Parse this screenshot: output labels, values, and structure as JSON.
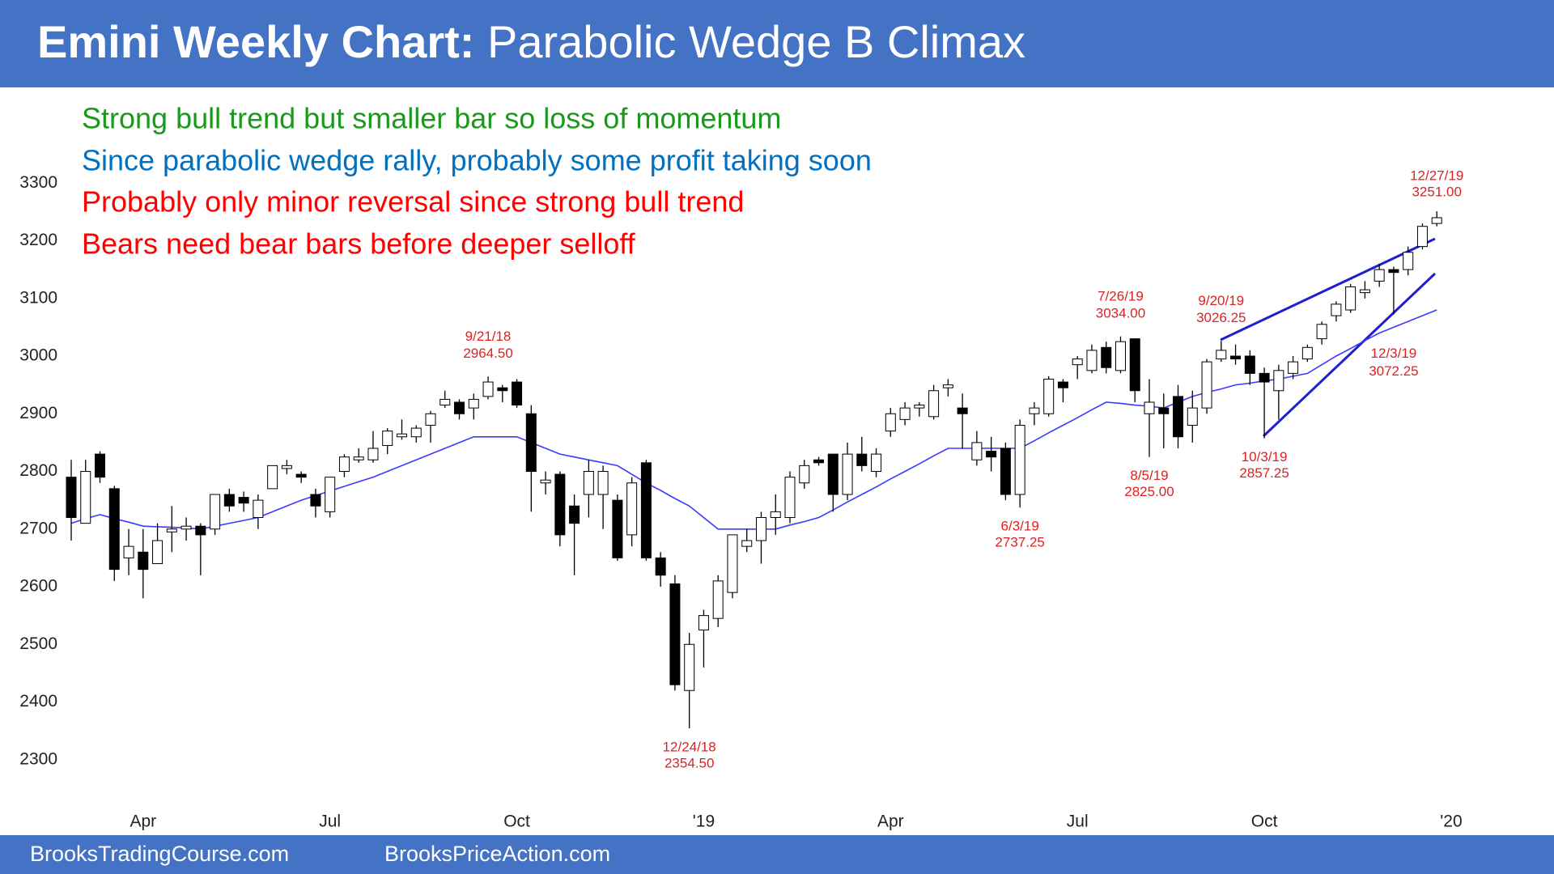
{
  "chart_data": {
    "type": "candlestick",
    "title": "Emini Weekly Chart:",
    "subtitle": "Parabolic Wedge B Climax",
    "notes": [
      {
        "text": "Strong bull trend but smaller bar so loss of momentum",
        "color": "#1a9a1a"
      },
      {
        "text": "Since parabolic wedge rally, probably some profit taking soon",
        "color": "#0070c0"
      },
      {
        "text": "Probably only minor reversal since strong bull trend",
        "color": "#ff0000"
      },
      {
        "text": "Bears need bear bars before deeper selloff",
        "color": "#ff0000"
      }
    ],
    "categories": [
      null,
      null,
      null,
      null,
      null,
      "Apr",
      null,
      null,
      null,
      null,
      null,
      null,
      null,
      null,
      null,
      null,
      null,
      null,
      "Jul",
      null,
      null,
      null,
      null,
      null,
      null,
      null,
      null,
      null,
      null,
      null,
      null,
      "Oct",
      null,
      null,
      null,
      null,
      null,
      null,
      null,
      null,
      null,
      null,
      null,
      null,
      "'19",
      null,
      null,
      null,
      null,
      null,
      null,
      null,
      null,
      null,
      null,
      null,
      null,
      "Apr",
      null,
      null,
      null,
      null,
      null,
      null,
      null,
      null,
      null,
      null,
      null,
      null,
      "Jul",
      null,
      null,
      null,
      null,
      null,
      null,
      null,
      null,
      null,
      null,
      null,
      null,
      "Oct",
      null,
      null,
      null,
      null,
      null,
      null,
      null,
      null,
      null,
      null,
      null,
      null,
      "'20"
    ],
    "open": [
      2790,
      2710,
      2830,
      2770,
      2650,
      2660,
      2640,
      2695,
      2700,
      2705,
      2700,
      2760,
      2755,
      2720,
      2770,
      2805,
      2795,
      2760,
      2730,
      2800,
      2820,
      2820,
      2845,
      2860,
      2860,
      2880,
      2915,
      2920,
      2910,
      2930,
      2945,
      2955,
      2900,
      2780,
      2795,
      2740,
      2760,
      2760,
      2750,
      2690,
      2815,
      2650,
      2605,
      2420,
      2525,
      2545,
      2590,
      2670,
      2680,
      2720,
      2720,
      2780,
      2820,
      2830,
      2760,
      2830,
      2800,
      2870,
      2890,
      2910,
      2895,
      2945,
      2910,
      2820,
      2835,
      2840,
      2760,
      2900,
      2900,
      2955,
      2985,
      2975,
      3015,
      2975,
      3030,
      2900,
      2910,
      2930,
      2880,
      2910,
      2995,
      3000,
      3000,
      2970,
      2940,
      2970,
      2995,
      3030,
      3070,
      3080,
      3110,
      3130,
      3150,
      3150,
      3190,
      3230,
      null
    ],
    "high": [
      2820,
      2820,
      2835,
      2775,
      2700,
      2700,
      2710,
      2740,
      2720,
      2710,
      2760,
      2770,
      2765,
      2760,
      2810,
      2820,
      2800,
      2770,
      2790,
      2830,
      2840,
      2870,
      2875,
      2890,
      2880,
      2905,
      2940,
      2925,
      2935,
      2964.5,
      2950,
      2960,
      2915,
      2800,
      2800,
      2760,
      2820,
      2810,
      2760,
      2790,
      2820,
      2660,
      2620,
      2520,
      2560,
      2620,
      2690,
      2700,
      2730,
      2760,
      2800,
      2820,
      2825,
      2830,
      2850,
      2860,
      2840,
      2910,
      2920,
      2920,
      2950,
      2960,
      2935,
      2870,
      2860,
      2850,
      2890,
      2920,
      2965,
      2960,
      3000,
      3020,
      3025,
      3034,
      3030,
      2960,
      2935,
      2950,
      2940,
      2995,
      3026.25,
      3020,
      3010,
      2980,
      2985,
      3000,
      3020,
      3060,
      3095,
      3125,
      3130,
      3160,
      3155,
      3190,
      3230,
      3251,
      null
    ],
    "low": [
      2680,
      2710,
      2780,
      2610,
      2620,
      2580,
      2640,
      2660,
      2680,
      2620,
      2690,
      2730,
      2730,
      2700,
      2770,
      2795,
      2780,
      2720,
      2720,
      2790,
      2815,
      2815,
      2830,
      2855,
      2850,
      2850,
      2910,
      2890,
      2890,
      2925,
      2920,
      2910,
      2730,
      2760,
      2670,
      2620,
      2720,
      2700,
      2645,
      2670,
      2645,
      2600,
      2420,
      2354.5,
      2460,
      2530,
      2580,
      2660,
      2640,
      2690,
      2710,
      2770,
      2810,
      2730,
      2750,
      2800,
      2790,
      2860,
      2880,
      2895,
      2890,
      2930,
      2840,
      2810,
      2800,
      2750,
      2737.25,
      2880,
      2895,
      2920,
      2960,
      2970,
      2970,
      2970,
      2920,
      2825,
      2840,
      2840,
      2850,
      2900,
      2990,
      2985,
      2950,
      2857.25,
      2890,
      2960,
      2990,
      3020,
      3060,
      3075,
      3100,
      3120,
      3072.25,
      3140,
      3185,
      3225,
      null
    ],
    "close": [
      2720,
      2800,
      2790,
      2630,
      2670,
      2630,
      2680,
      2700,
      2705,
      2690,
      2760,
      2740,
      2745,
      2750,
      2810,
      2810,
      2790,
      2740,
      2790,
      2825,
      2825,
      2840,
      2870,
      2865,
      2875,
      2900,
      2925,
      2900,
      2925,
      2955,
      2940,
      2915,
      2800,
      2785,
      2690,
      2710,
      2800,
      2800,
      2650,
      2780,
      2650,
      2620,
      2430,
      2500,
      2550,
      2610,
      2690,
      2680,
      2720,
      2730,
      2790,
      2810,
      2815,
      2760,
      2830,
      2810,
      2830,
      2900,
      2910,
      2915,
      2940,
      2950,
      2900,
      2850,
      2825,
      2760,
      2880,
      2910,
      2960,
      2945,
      2995,
      3010,
      2980,
      3025,
      2940,
      2920,
      2900,
      2860,
      2910,
      2990,
      3010,
      2995,
      2970,
      2955,
      2975,
      2990,
      3015,
      3055,
      3090,
      3120,
      3115,
      3150,
      3145,
      3180,
      3225,
      3240,
      null
    ],
    "up_color": "#ffffff",
    "down_color": "#000000",
    "moving_average": {
      "color": "#3a3aff",
      "values": [
        2710,
        2718,
        2725,
        2718,
        2712,
        2705,
        2704,
        2703,
        2702,
        2700,
        2705,
        2710,
        2715,
        2720,
        2730,
        2740,
        2750,
        2758,
        2766,
        2774,
        2782,
        2790,
        2800,
        2810,
        2820,
        2830,
        2840,
        2850,
        2860,
        2860,
        2860,
        2860,
        2850,
        2840,
        2830,
        2825,
        2820,
        2815,
        2810,
        2795,
        2780,
        2767,
        2753,
        2740,
        2720,
        2700,
        2700,
        2700,
        2700,
        2700,
        2707,
        2713,
        2720,
        2733,
        2747,
        2760,
        2773,
        2787,
        2800,
        2813,
        2827,
        2840,
        2840,
        2840,
        2840,
        2840,
        2840,
        2853,
        2867,
        2880,
        2893,
        2907,
        2920,
        2918,
        2915,
        2913,
        2910,
        2920,
        2930,
        2937,
        2943,
        2950,
        2953,
        2957,
        2960,
        2965,
        2970,
        2985,
        3000,
        3013,
        3027,
        3040,
        3050,
        3060,
        3070,
        3080,
        null
      ]
    },
    "annotation_color": "#e02020",
    "annotations": [
      {
        "label": "9/21/18",
        "value": 2964.5,
        "value_label": "2964.50"
      },
      {
        "label": "12/24/18",
        "value": 2354.5,
        "value_label": "2354.50"
      },
      {
        "label": "6/3/19",
        "value": 2737.25,
        "value_label": "2737.25"
      },
      {
        "label": "7/26/19",
        "value": 3034,
        "value_label": "3034.00"
      },
      {
        "label": "8/5/19",
        "value": 2825,
        "value_label": "2825.00"
      },
      {
        "label": "9/20/19",
        "value": 3026.25,
        "value_label": "3026.25"
      },
      {
        "label": "10/3/19",
        "value": 2857.25,
        "value_label": "2857.25"
      },
      {
        "label": "12/3/19",
        "value": 3072.25,
        "value_label": "3072.25"
      },
      {
        "label": "12/27/19",
        "value": 3251,
        "value_label": "3251.00"
      }
    ],
    "ylim": [
      2200,
      3400
    ],
    "yticks": [
      2300,
      2400,
      2500,
      2600,
      2700,
      2800,
      2900,
      3000,
      3100,
      3200,
      3300
    ],
    "grid": false,
    "footer": [
      "BrooksTradingCourse.com",
      "BrooksPriceAction.com"
    ]
  }
}
